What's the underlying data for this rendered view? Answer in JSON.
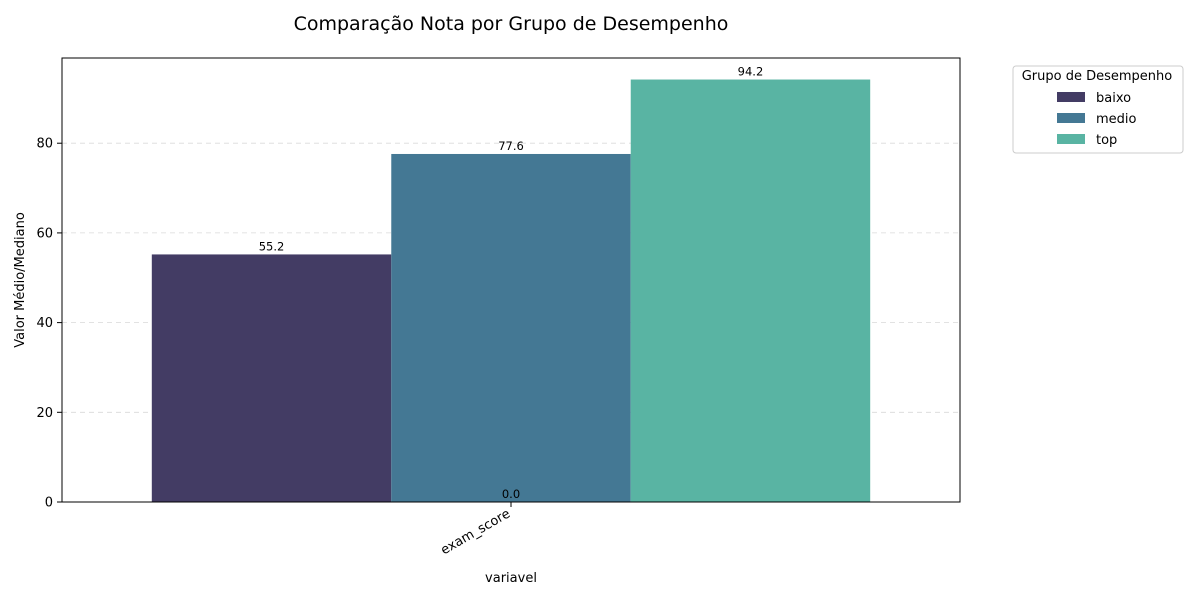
{
  "chart_data": {
    "type": "bar",
    "title": "Comparação Nota por Grupo de Desempenho",
    "xlabel": "variavel",
    "ylabel": "Valor Médio/Mediano",
    "categories": [
      "exam_score"
    ],
    "series": [
      {
        "name": "baixo",
        "values": [
          55.2
        ],
        "color": "#433c64"
      },
      {
        "name": "medio",
        "values": [
          77.6
        ],
        "color": "#447894"
      },
      {
        "name": "top",
        "values": [
          94.2
        ],
        "color": "#59b4a3"
      }
    ],
    "data_labels": [
      "55.2",
      "77.6",
      "94.2"
    ],
    "extra_labels": [
      "0.0"
    ],
    "ylim": [
      0,
      99
    ],
    "yticks": [
      0,
      20,
      40,
      60,
      80
    ],
    "ytick_labels": [
      "0",
      "20",
      "40",
      "60",
      "80"
    ],
    "grid": true,
    "legend": {
      "title": "Grupo de Desempenho",
      "position": "outside-top-right"
    }
  }
}
